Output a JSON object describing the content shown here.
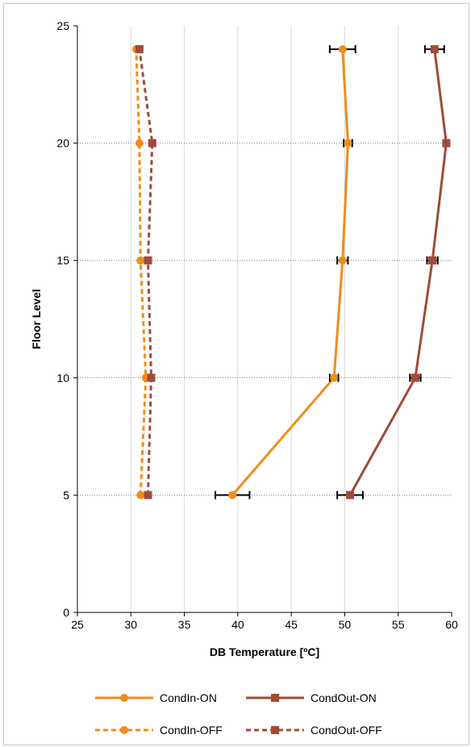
{
  "chart_data": {
    "type": "line",
    "title": "",
    "xlabel": "DB Temperature [ºC]",
    "ylabel": "Floor Level",
    "xlim": [
      25,
      60
    ],
    "ylim": [
      0,
      25
    ],
    "xticks": [
      25,
      30,
      35,
      40,
      45,
      50,
      55,
      60
    ],
    "yticks": [
      0,
      5,
      10,
      15,
      20,
      25
    ],
    "x_grid": true,
    "y_grid": true,
    "legend_position": "bottom",
    "series": [
      {
        "name": "CondIn-ON",
        "color": "#f08c1a",
        "dash": "solid",
        "marker": "circle",
        "x": [
          39.5,
          49.0,
          49.8,
          50.3,
          49.8
        ],
        "y": [
          5,
          10,
          15,
          20,
          24
        ],
        "err": [
          1.6,
          0.4,
          0.5,
          0.4,
          1.2
        ]
      },
      {
        "name": "CondOut-ON",
        "color": "#a04a3a",
        "dash": "solid",
        "marker": "square",
        "x": [
          50.5,
          56.6,
          58.2,
          59.5,
          58.4
        ],
        "y": [
          5,
          10,
          15,
          20,
          24
        ],
        "err": [
          1.2,
          0.5,
          0.5,
          0.2,
          0.9
        ]
      },
      {
        "name": "CondIn-OFF",
        "color": "#f08c1a",
        "dash": "dashed",
        "marker": "circle",
        "x": [
          30.9,
          31.4,
          30.9,
          30.8,
          30.5
        ],
        "y": [
          5,
          10,
          15,
          20,
          24
        ],
        "err": []
      },
      {
        "name": "CondOut-OFF",
        "color": "#a04a3a",
        "dash": "dashed",
        "marker": "square",
        "x": [
          31.6,
          31.9,
          31.6,
          32.0,
          30.8
        ],
        "y": [
          5,
          10,
          15,
          20,
          24
        ],
        "err": []
      }
    ]
  }
}
